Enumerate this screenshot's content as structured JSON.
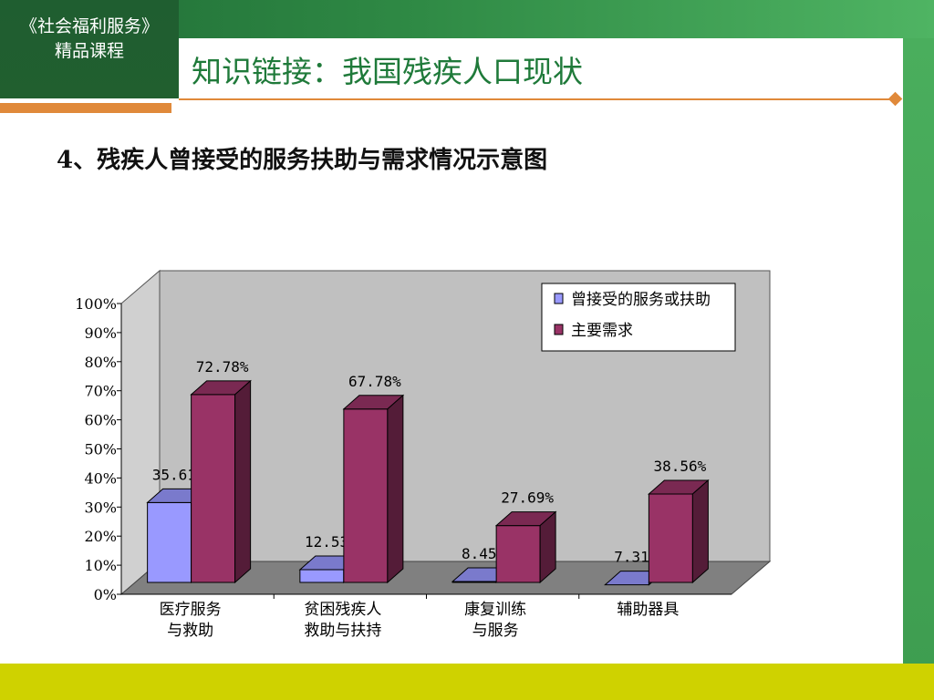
{
  "header": {
    "course_line1": "《社会福利服务》",
    "course_line2": "精品课程",
    "title": "知识链接：我国残疾人口现状"
  },
  "subtitle": "4、残疾人曾接受的服务扶助与需求情况示意图",
  "colors": {
    "header_green": "#1f6b35",
    "accent_orange": "#e0893a",
    "bottom_bar": "#cfd200",
    "series_received": "#9999ff",
    "series_need": "#993366",
    "plot_back": "#c0c0c0",
    "plot_floor": "#808080"
  },
  "chart_data": {
    "type": "bar",
    "style": "3d-clustered-column",
    "title": "",
    "xlabel": "",
    "ylabel": "",
    "categories": [
      [
        "医疗服务",
        "与救助"
      ],
      [
        "贫困残疾人",
        "救助与扶持"
      ],
      [
        "康复训练",
        "与服务"
      ],
      [
        "辅助器具"
      ]
    ],
    "series": [
      {
        "name": "曾接受的服务或扶助",
        "values": [
          35.61,
          12.53,
          8.45,
          7.31
        ],
        "labels": [
          "35.61%",
          "12.53%",
          "8.45%",
          "7.31%"
        ],
        "color": "#9999ff"
      },
      {
        "name": "主要需求",
        "values": [
          72.78,
          67.78,
          27.69,
          38.56
        ],
        "labels": [
          "72.78%",
          "67.78%",
          "27.69%",
          "38.56%"
        ],
        "color": "#993366"
      }
    ],
    "ylim": [
      0,
      100
    ],
    "yticks": [
      "0%",
      "10%",
      "20%",
      "30%",
      "40%",
      "50%",
      "60%",
      "70%",
      "80%",
      "90%",
      "100%"
    ],
    "grid": false,
    "legend_position": "top-right"
  }
}
